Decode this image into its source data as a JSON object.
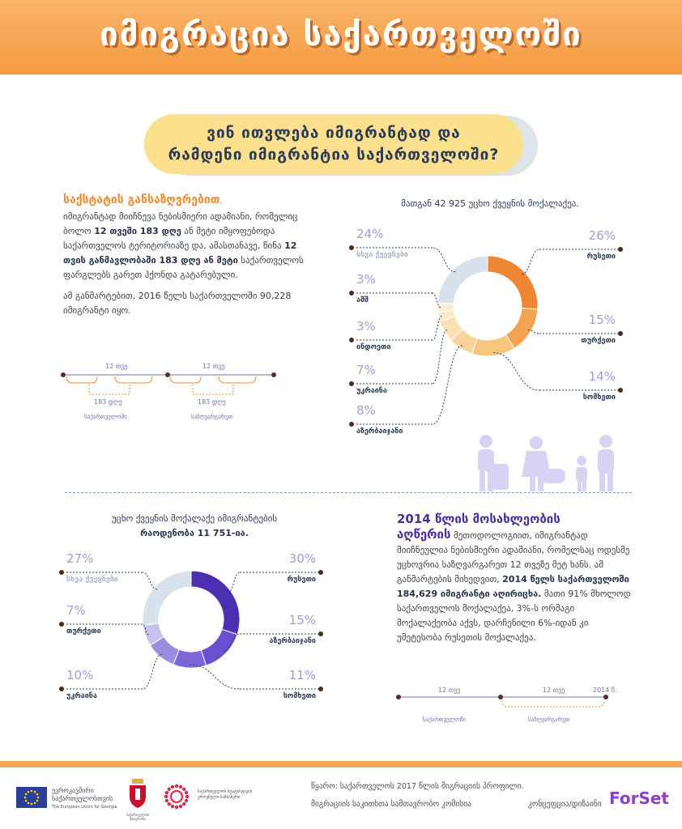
{
  "header": {
    "title": "იმიგრაცია საქართველოში"
  },
  "banner": {
    "line1": "ვინ ითვლება იმიგრანტად და",
    "line2": "რამდენი იმიგრანტია საქართველოში?"
  },
  "section1": {
    "title": "საქსტატის განსაზღვრებით",
    "comma": ",",
    "p1_a": "იმიგრანტად მიიჩნევა ნებისმიერი ადამიანი, რომელიც ბოლო ",
    "p1_b": "12 თვეში 183 დღე",
    "p1_c": " ან მეტი იმყოფებოდა საქართველოს ტერიტორიაზე და, ამასთანავე, წინა ",
    "p1_d": "12 თვის განმავლობაში 183 დღე ან მეტი",
    "p1_e": " საქართველოს ფარგლებს გარეთ ჰქონდა გატარებული.",
    "p2": "ამ განმარტებით, 2016 წელს საქართველოში 90,228 იმიგრანტი იყო.",
    "timeline": {
      "months_a": "12 თვე",
      "months_b": "12 თვე",
      "days_a": "183 დღე",
      "days_b": "183 დღე",
      "place_a": "საქართველოში",
      "place_b": "საზღვარგარეთ"
    }
  },
  "section2": {
    "title_a": "2014 წლის მოსახლეობის",
    "title_b": "აღწერის",
    "p1_a": " მეთოდოლოგიით, იმიგრანტად მიიჩნეულია ნებისმიერი ადამიანი, რომელსაც ოდესმე უცხოვრია საზღვარგარეთ 12 თვეზე მეტ ხანს. ამ განმარტების მიხედვით, ",
    "p1_b": "2014 წელს საქართველოში 184,629 იმიგრანტი აღირიცხა.",
    "p1_c": " მათი 91% მხოლოდ საქართველოს მოქალაქეა, 3%-ს ორმაგი მოქალაქეობა აქვს, დარჩენილი 6%-იდან კი უმეტესობა რუსეთის მოქალაქეა.",
    "timeline": {
      "months_a": "12 თვე",
      "months_b": "12 თვე",
      "year": "2014 წ.",
      "place_a": "საქართველოში",
      "place_b": "საზღვარგარეთ"
    }
  },
  "footer": {
    "source_line1": "წყარო: საქართველოს 2017 წლის მიგრაციის პროფილი.",
    "source_line2": "მიგრაციის საკითხთა სამთავრობო კომისია",
    "concept": "კონცეფცია/დიზაინი",
    "brand": "ForSet",
    "eu_line1": "ევროკავშირი",
    "eu_line2": "საქართველოსთვის",
    "eu_line3": "The European Union for Georgia",
    "gov_label": "საქართველოს მთავრობა",
    "ministry_line1": "საქართველოს სტატისტიკის",
    "ministry_line2": "ეროვნული სამსახური"
  },
  "colors": {
    "orange_dark": "#ee8633",
    "orange_mid": "#f4a451",
    "orange_light": "#f8c77e",
    "grey_blue": "#d7e2ec",
    "purple_dark": "#4b2fb0",
    "purple_mid": "#6a4fd0",
    "purple_light": "#9b8ce0",
    "purple_pale": "#c9c1ee"
  },
  "chart_data": [
    {
      "type": "pie",
      "title": "მათგან 42 925 უცხო ქვეყნის მოქალაქეა.",
      "categories": [
        "რუსეთი",
        "თურქეთი",
        "სომხეთი",
        "აზერბაიჯანი",
        "უკრაინა",
        "ინდოეთი",
        "აშშ",
        "სხვა ქვეყნები"
      ],
      "values": [
        26,
        15,
        14,
        8,
        7,
        3,
        3,
        24
      ],
      "labels": [
        "26%",
        "15%",
        "14%",
        "8%",
        "7%",
        "3%",
        "3%",
        "24%"
      ]
    },
    {
      "type": "pie",
      "title": "უცხო ქვეყნის მოქალაქე იმიგრანტების",
      "subtitle": "რაოდენობა 11 751-ია.",
      "categories": [
        "რუსეთი",
        "აზერბაიჯანი",
        "სომხეთი",
        "უკრაინა",
        "თურქეთი",
        "სხვა ქვეყნები"
      ],
      "values": [
        30,
        15,
        11,
        10,
        7,
        27
      ],
      "labels": [
        "30%",
        "15%",
        "11%",
        "10%",
        "7%",
        "27%"
      ]
    }
  ]
}
